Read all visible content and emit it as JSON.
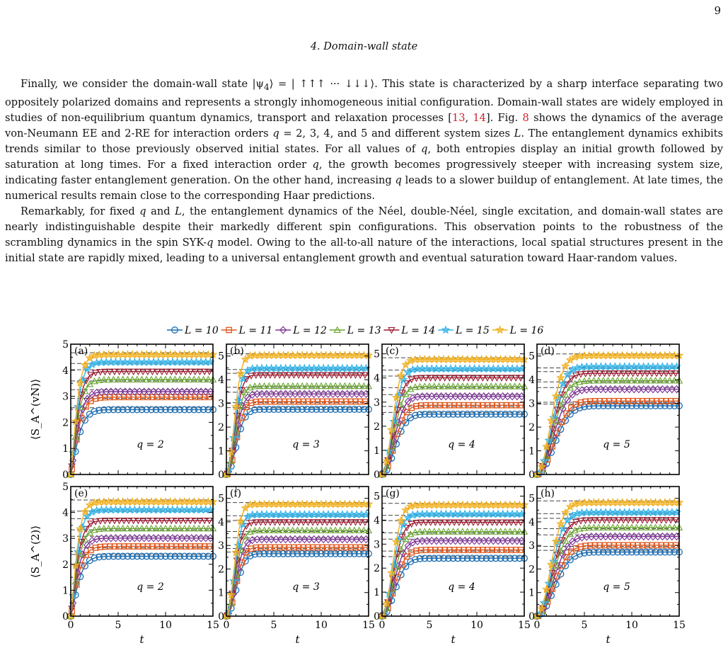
{
  "page_number": "9",
  "section_title": "4.   Domain-wall state",
  "paragraphs": [
    [
      {
        "t": "Finally, we consider the domain-wall state |ψ"
      },
      {
        "t": "4",
        "sub": true
      },
      {
        "t": "⟩ = | ↑↑↑ ··· ↓↓↓⟩. This state is characterized by a sharp interface separating two oppositely polarized domains and represents a strongly inhomogeneous initial configuration. Domain-wall states are widely employed in studies of non-equilibrium quantum dynamics, transport and relaxation processes ["
      },
      {
        "t": "13",
        "ref": true
      },
      {
        "t": ", "
      },
      {
        "t": "14",
        "ref": true
      },
      {
        "t": "]. Fig. "
      },
      {
        "t": "8",
        "ref": true
      },
      {
        "t": " shows the dynamics of the average von-Neumann EE and 2-RE for interaction orders "
      },
      {
        "t": "q",
        "i": true
      },
      {
        "t": " = 2, 3, 4, and 5 and different system sizes "
      },
      {
        "t": "L",
        "i": true
      },
      {
        "t": ". The entanglement dynamics exhibits trends similar to those previously observed initial states. For all values of "
      },
      {
        "t": "q",
        "i": true
      },
      {
        "t": ", both entropies display an initial growth followed by saturation at long times. For a fixed interaction order "
      },
      {
        "t": "q",
        "i": true
      },
      {
        "t": ", the growth becomes progressively steeper with increasing system size, indicating faster entanglement generation. On the other hand, increasing "
      },
      {
        "t": "q",
        "i": true
      },
      {
        "t": " leads to a slower buildup of entanglement. At late times, the numerical results remain close to the corresponding Haar predictions."
      }
    ],
    [
      {
        "t": "Remarkably, for fixed "
      },
      {
        "t": "q",
        "i": true
      },
      {
        "t": " and "
      },
      {
        "t": "L",
        "i": true
      },
      {
        "t": ", the entanglement dynamics of the Néel, double-Néel, single excitation, and domain-wall states are nearly indistinguishable despite their markedly different spin configurations. This observation points to the robustness of the scrambling dynamics in the spin SYK-"
      },
      {
        "t": "q",
        "i": true
      },
      {
        "t": " model. Owing to the all-to-all nature of the interactions, local spatial structures present in the initial state are rapidly mixed, leading to a universal entanglement growth and eventual saturation toward Haar-random values."
      }
    ]
  ],
  "chart_data": {
    "type": "line",
    "legend_position": "top-center",
    "series": [
      {
        "name": "L = 10",
        "L": 10,
        "color": "#1f6fb2",
        "marker": "circle"
      },
      {
        "name": "L = 11",
        "L": 11,
        "color": "#e0571c",
        "marker": "square"
      },
      {
        "name": "L = 12",
        "L": 12,
        "color": "#7b3294",
        "marker": "diamond"
      },
      {
        "name": "L = 13",
        "L": 13,
        "color": "#6aa632",
        "marker": "triangle-up"
      },
      {
        "name": "L = 14",
        "L": 14,
        "color": "#9b1b30",
        "marker": "triangle-down"
      },
      {
        "name": "L = 15",
        "L": 15,
        "color": "#35b3e6",
        "marker": "star"
      },
      {
        "name": "L = 16",
        "L": 16,
        "color": "#f0b020",
        "marker": "star"
      }
    ],
    "x_tick_labels": [
      "0",
      "5",
      "10",
      "15"
    ],
    "xlabel": "t",
    "ylabel_vn": "⟨S_A^(vN)⟩",
    "ylabel_2": "⟨S_A^(2)⟩",
    "grid": false,
    "reference_lines": "Haar predictions (dashed)",
    "panels": [
      {
        "label": "(a)",
        "row": "vN",
        "q": 2,
        "q_label": "q = 2",
        "xlim": [
          0,
          15
        ],
        "ylim": [
          0,
          5
        ],
        "y_tick_labels": [
          "0",
          "1",
          "2",
          "3",
          "4",
          "5"
        ],
        "rise_time": 0.9,
        "saturation": [
          2.49,
          2.97,
          3.18,
          3.64,
          3.95,
          4.31,
          4.6
        ]
      },
      {
        "label": "(b)",
        "row": "vN",
        "q": 3,
        "q_label": "q = 3",
        "xlim": [
          0,
          15
        ],
        "ylim": [
          0,
          5.5
        ],
        "y_tick_labels": [
          "0",
          "1",
          "2",
          "3",
          "4",
          "5"
        ],
        "rise_time": 1.3,
        "saturation": [
          2.75,
          3.08,
          3.4,
          3.73,
          4.2,
          4.48,
          5.03
        ]
      },
      {
        "label": "(c)",
        "row": "vN",
        "q": 4,
        "q_label": "q = 4",
        "xlim": [
          0,
          15
        ],
        "ylim": [
          0,
          5.4
        ],
        "y_tick_labels": [
          "0",
          "1",
          "2",
          "3",
          "4",
          "5"
        ],
        "rise_time": 1.7,
        "saturation": [
          2.5,
          2.87,
          3.24,
          3.65,
          4.01,
          4.38,
          4.77
        ]
      },
      {
        "label": "(d)",
        "row": "vN",
        "q": 5,
        "q_label": "q = 5",
        "xlim": [
          0,
          15
        ],
        "ylim": [
          0,
          5.5
        ],
        "y_tick_labels": [
          "0",
          "1",
          "2",
          "3",
          "4",
          "5"
        ],
        "rise_time": 2.3,
        "saturation": [
          2.9,
          3.1,
          3.6,
          3.96,
          4.27,
          4.55,
          5.02
        ]
      },
      {
        "label": "(e)",
        "row": "2RE",
        "q": 2,
        "q_label": "q = 2",
        "xlim": [
          0,
          15
        ],
        "ylim": [
          0,
          5
        ],
        "y_tick_labels": [
          "0",
          "1",
          "2",
          "3",
          "4",
          "5"
        ],
        "rise_time": 0.9,
        "saturation": [
          2.31,
          2.69,
          3.01,
          3.38,
          3.69,
          4.1,
          4.41
        ]
      },
      {
        "label": "(f)",
        "row": "2RE",
        "q": 3,
        "q_label": "q = 3",
        "xlim": [
          0,
          15
        ],
        "ylim": [
          0,
          5.5
        ],
        "y_tick_labels": [
          "0",
          "1",
          "2",
          "3",
          "4",
          "5"
        ],
        "rise_time": 1.3,
        "saturation": [
          2.65,
          2.92,
          3.26,
          3.64,
          3.99,
          4.31,
          4.75
        ]
      },
      {
        "label": "(g)",
        "row": "2RE",
        "q": 4,
        "q_label": "q = 4",
        "xlim": [
          0,
          15
        ],
        "ylim": [
          0,
          5.4
        ],
        "y_tick_labels": [
          "0",
          "1",
          "2",
          "3",
          "4",
          "5"
        ],
        "rise_time": 1.7,
        "saturation": [
          2.41,
          2.76,
          3.14,
          3.52,
          3.91,
          4.25,
          4.63
        ]
      },
      {
        "label": "(h)",
        "row": "2RE",
        "q": 5,
        "q_label": "q = 5",
        "xlim": [
          0,
          15
        ],
        "ylim": [
          0,
          5.5
        ],
        "y_tick_labels": [
          "0",
          "1",
          "2",
          "3",
          "4",
          "5"
        ],
        "rise_time": 2.3,
        "saturation": [
          2.72,
          3.01,
          3.38,
          3.76,
          4.08,
          4.4,
          4.82
        ]
      }
    ]
  }
}
